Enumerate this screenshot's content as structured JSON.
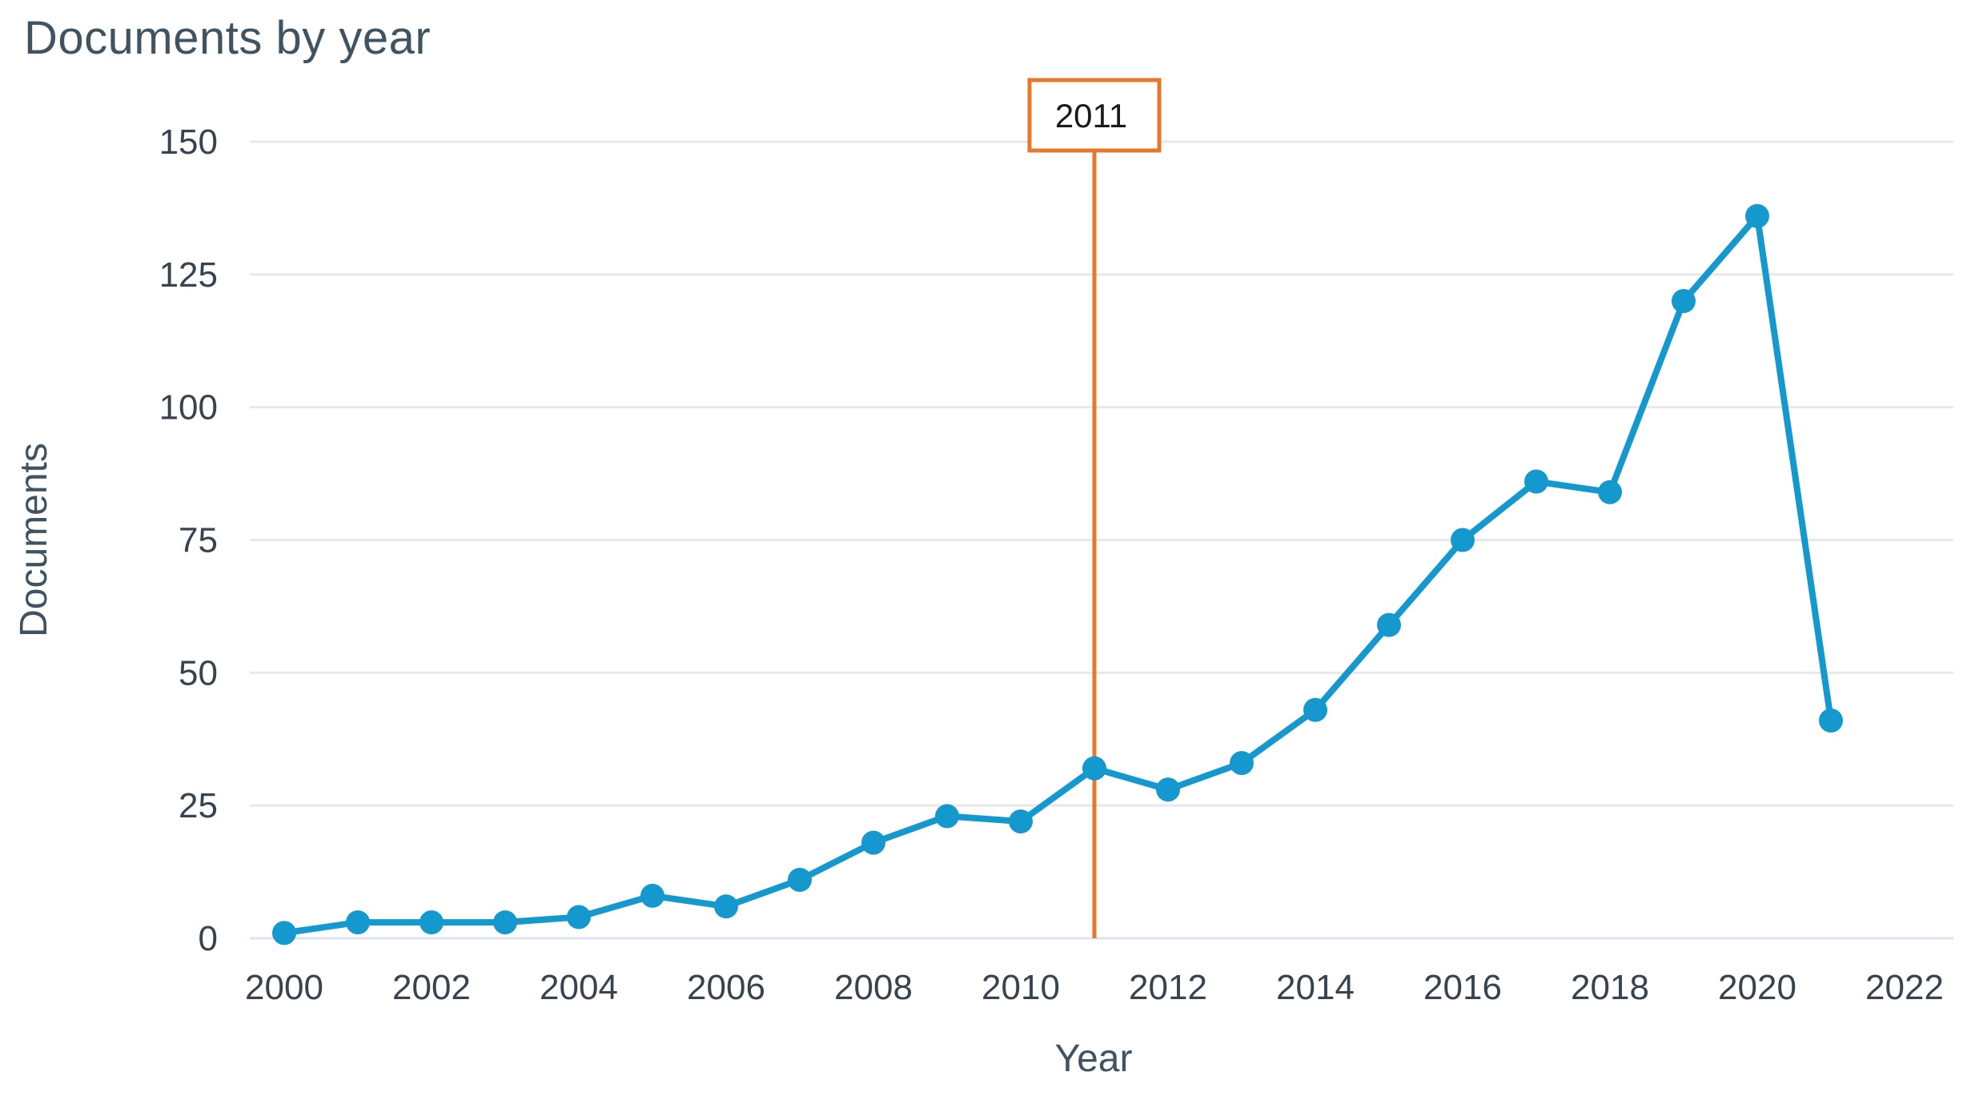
{
  "chart_data": {
    "type": "line",
    "title": "Documents by year",
    "xlabel": "Year",
    "ylabel": "Documents",
    "x": [
      2000,
      2001,
      2002,
      2003,
      2004,
      2005,
      2006,
      2007,
      2008,
      2009,
      2010,
      2011,
      2012,
      2013,
      2014,
      2015,
      2016,
      2017,
      2018,
      2019,
      2020,
      2021
    ],
    "values": [
      1,
      3,
      3,
      3,
      4,
      8,
      6,
      11,
      18,
      23,
      22,
      32,
      28,
      33,
      43,
      59,
      75,
      86,
      84,
      120,
      136,
      41
    ],
    "series_name": "Documents",
    "ylim": [
      0,
      150
    ],
    "yticks": [
      0,
      25,
      50,
      75,
      100,
      125,
      150
    ],
    "xticks": [
      2000,
      2002,
      2004,
      2006,
      2008,
      2010,
      2012,
      2014,
      2016,
      2018,
      2020,
      2022
    ],
    "grid": "horizontal",
    "legend": "none",
    "annotation": {
      "label": "2011",
      "year": 2011
    },
    "colors": {
      "line": "#1598cd",
      "marker": "#1598cd",
      "annotation_line": "#e8772e",
      "annotation_box_border": "#e8772e",
      "annotation_box_fill": "#ffffff",
      "annotation_text": "#1a1a1a",
      "grid": "#e8e8e8",
      "baseline": "#dde2ef",
      "tick_text": "#37434e",
      "label_text": "#3f5360",
      "background": "#ffffff"
    }
  }
}
